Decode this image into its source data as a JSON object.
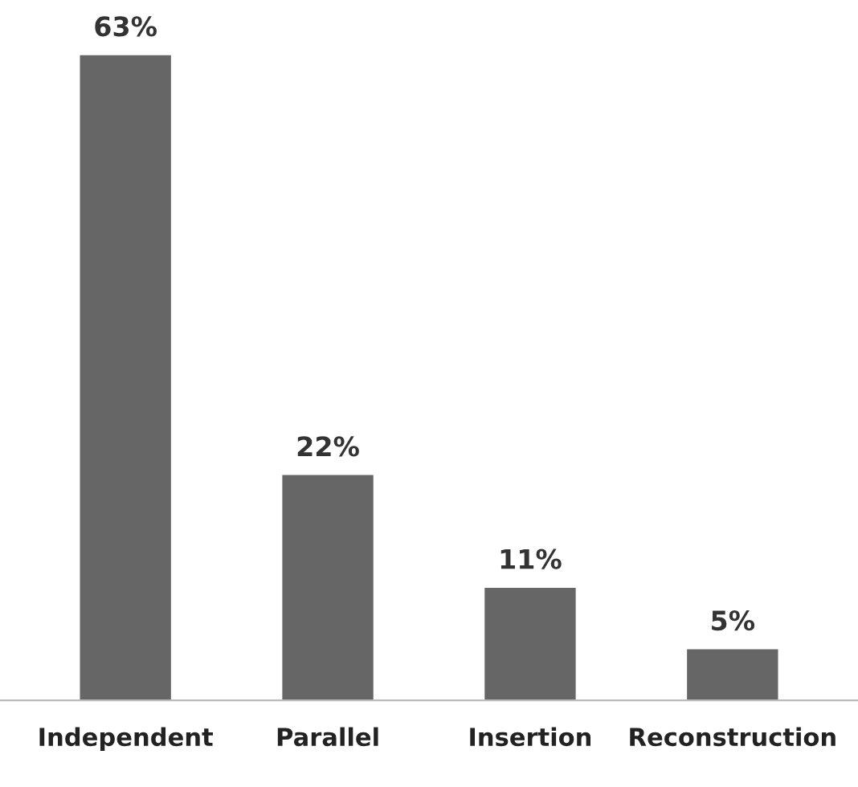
{
  "chart_data": {
    "type": "bar",
    "categories": [
      "Independent",
      "Parallel",
      "Insertion",
      "Reconstruction"
    ],
    "values": [
      63,
      22,
      11,
      5
    ],
    "value_labels": [
      "63%",
      "22%",
      "11%",
      "5%"
    ],
    "color": "#666666",
    "grid": false,
    "legend": false
  }
}
